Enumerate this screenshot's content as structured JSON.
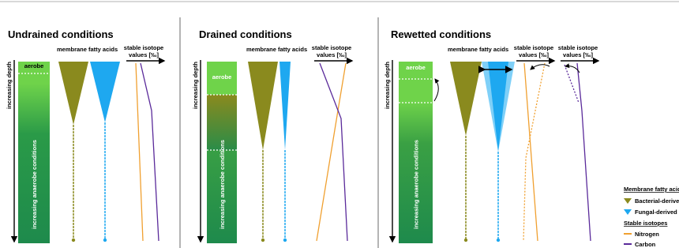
{
  "panels": [
    {
      "title": "Undrained conditions",
      "depth_label": "increasing depth",
      "aerobe_label": "aerobe",
      "anaerobe_label": "increasing anaerobe conditions",
      "fatty_acids_label": "membrane fatty acids",
      "isotope_label": [
        "stable isotope",
        "values [‰]"
      ]
    },
    {
      "title": "Drained conditions",
      "depth_label": "increasing depth",
      "aerobe_label": "aerobe",
      "anaerobe_label": "increasing anaerobe conditions",
      "fatty_acids_label": "membrane fatty acids",
      "isotope_label": [
        "stable isotope",
        "values [‰]"
      ]
    },
    {
      "title": "Rewetted conditions",
      "depth_label": "increasing depth",
      "aerobe_label": "aerobe",
      "anaerobe_label": "increasing anaerobe conditions",
      "fatty_acids_label": "membrane fatty acids",
      "isotope_label": [
        "stable isotope",
        "values [‰]"
      ],
      "isotope_label_2": [
        "stable isotope",
        "values [‰]"
      ]
    }
  ],
  "legend": {
    "fatty_acids_title": "Membrane fatty acids",
    "bacterial": "Bacterial-derived",
    "fungal": "Fungal-derived",
    "isotopes_title": "Stable isotopes",
    "nitrogen": "Nitrogen",
    "carbon": "Carbon"
  }
}
